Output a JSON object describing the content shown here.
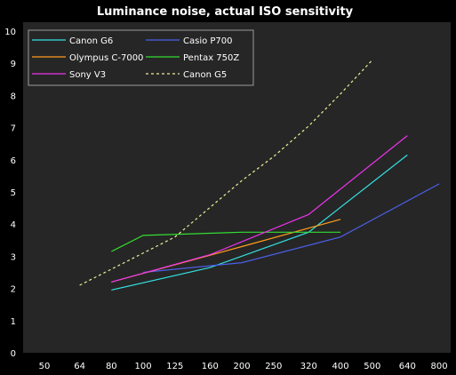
{
  "chart_data": {
    "type": "line",
    "title": "Luminance noise, actual ISO sensitivity",
    "xlabel": "",
    "ylabel": "",
    "x_scale": "log",
    "x_ticks": [
      50,
      64,
      80,
      100,
      125,
      160,
      200,
      250,
      320,
      400,
      500,
      640,
      800
    ],
    "y_ticks": [
      0,
      1,
      2,
      3,
      4,
      5,
      6,
      7,
      8,
      9,
      10
    ],
    "xlim": [
      50,
      800
    ],
    "ylim": [
      0,
      10
    ],
    "grid": false,
    "legend_position": "top-left",
    "background": "#262626",
    "series": [
      {
        "name": "Canon G6",
        "color": "#33e0e0",
        "dash": false,
        "x": [
          80,
          160,
          320,
          640
        ],
        "y": [
          1.95,
          2.65,
          3.75,
          6.15
        ]
      },
      {
        "name": "Casio P700",
        "color": "#4b5fe8",
        "dash": false,
        "x": [
          100,
          200,
          400,
          800
        ],
        "y": [
          2.5,
          2.8,
          3.6,
          5.25
        ]
      },
      {
        "name": "Olympus C-7000",
        "color": "#ff9b1c",
        "dash": false,
        "x": [
          80,
          200,
          400
        ],
        "y": [
          2.2,
          3.3,
          4.15
        ]
      },
      {
        "name": "Pentax 750Z",
        "color": "#33dd33",
        "dash": false,
        "x": [
          80,
          100,
          200,
          400
        ],
        "y": [
          3.15,
          3.65,
          3.75,
          3.75
        ]
      },
      {
        "name": "Sony V3",
        "color": "#ee33ee",
        "dash": false,
        "x": [
          80,
          160,
          320,
          640
        ],
        "y": [
          2.2,
          3.05,
          4.3,
          6.75
        ]
      },
      {
        "name": "Canon G5",
        "color": "#eeee99",
        "dash": true,
        "x": [
          64,
          125,
          200,
          250,
          320,
          400,
          500
        ],
        "y": [
          2.1,
          3.6,
          5.35,
          6.1,
          7.05,
          8.05,
          9.1
        ]
      }
    ]
  }
}
